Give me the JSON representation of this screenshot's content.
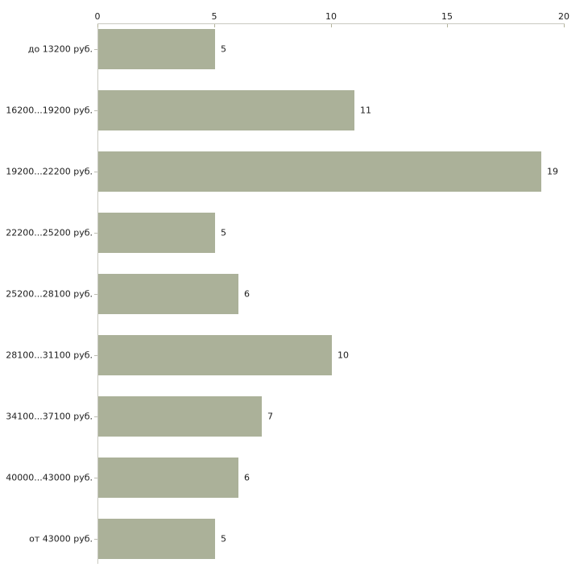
{
  "chart_data": {
    "type": "bar",
    "orientation": "horizontal",
    "title": "",
    "xlabel": "",
    "ylabel": "",
    "categories": [
      "до 13200 руб.",
      "16200...19200 руб.",
      "19200...22200 руб.",
      "22200...25200 руб.",
      "25200...28100 руб.",
      "28100...31100 руб.",
      "34100...37100 руб.",
      "40000...43000 руб.",
      "от 43000 руб."
    ],
    "values": [
      5,
      11,
      19,
      5,
      6,
      10,
      7,
      6,
      5
    ],
    "value_labels": [
      "5",
      "11",
      "19",
      "5",
      "6",
      "10",
      "7",
      "6",
      "5"
    ],
    "xlim": [
      0,
      20
    ],
    "x_tick_values": [
      0,
      5,
      10,
      15,
      20
    ],
    "x_tick_labels": [
      "0",
      "5",
      "10",
      "15",
      "20"
    ],
    "axis_position": "top",
    "grid": false,
    "legend": false,
    "colors": {
      "bar": "#abb199",
      "axis_line": "#c9c9c0",
      "tick": "#b3b39b",
      "category_tick": "#bdbdb2",
      "text": "#1c1c1c",
      "background": "#ffffff"
    }
  }
}
